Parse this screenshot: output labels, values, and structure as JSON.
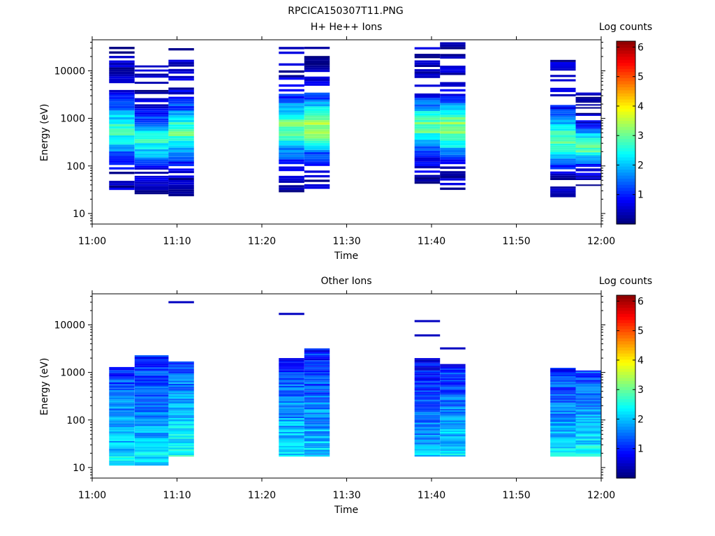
{
  "figure_title": "RPCICA150307T11.PNG",
  "chart_data": [
    {
      "type": "heatmap",
      "title": "H+ He++ Ions",
      "xlabel": "Time",
      "ylabel": "Energy (eV)",
      "x_ticks": [
        "11:00",
        "11:10",
        "11:20",
        "11:30",
        "11:40",
        "11:50",
        "12:00"
      ],
      "y_ticks": [
        "10",
        "100",
        "1000",
        "10000"
      ],
      "y_scale": "log",
      "ylim": [
        6,
        45000
      ],
      "colorbar": {
        "label": "Log counts",
        "ticks": [
          "1",
          "2",
          "3",
          "4",
          "5",
          "6"
        ],
        "range": [
          0,
          6.2
        ]
      },
      "columns": [
        {
          "start": "11:02",
          "end": "11:05",
          "emin": 28,
          "emax": 32000,
          "level": 2.6,
          "seed": 1
        },
        {
          "start": "11:05",
          "end": "11:09",
          "emin": 23,
          "emax": 13000,
          "level": 2.5,
          "seed": 2
        },
        {
          "start": "11:09",
          "end": "11:12",
          "emin": 23,
          "emax": 30000,
          "level": 2.8,
          "seed": 3
        },
        {
          "start": "11:22",
          "end": "11:25",
          "emin": 28,
          "emax": 40000,
          "level": 3.1,
          "seed": 4
        },
        {
          "start": "11:25",
          "end": "11:28",
          "emin": 33,
          "emax": 40000,
          "level": 3.4,
          "seed": 5
        },
        {
          "start": "11:38",
          "end": "11:41",
          "emin": 38,
          "emax": 35000,
          "level": 2.9,
          "seed": 6
        },
        {
          "start": "11:41",
          "end": "11:44",
          "emin": 28,
          "emax": 40000,
          "level": 3.2,
          "seed": 7
        },
        {
          "start": "11:54",
          "end": "11:57",
          "emin": 22,
          "emax": 17000,
          "level": 2.8,
          "seed": 8
        },
        {
          "start": "11:57",
          "end": "12:00",
          "emin": 38,
          "emax": 3500,
          "level": 3.0,
          "seed": 9
        }
      ]
    },
    {
      "type": "heatmap",
      "title": "Other Ions",
      "xlabel": "Time",
      "ylabel": "Energy (eV)",
      "x_ticks": [
        "11:00",
        "11:10",
        "11:20",
        "11:30",
        "11:40",
        "11:50",
        "12:00"
      ],
      "y_ticks": [
        "10",
        "100",
        "1000",
        "10000"
      ],
      "y_scale": "log",
      "ylim": [
        6,
        45000
      ],
      "colorbar": {
        "label": "Log counts",
        "ticks": [
          "1",
          "2",
          "3",
          "4",
          "5",
          "6"
        ],
        "range": [
          0,
          6.2
        ]
      },
      "columns": [
        {
          "start": "11:02",
          "end": "11:05",
          "emin": 11,
          "emax": 1300,
          "level": 2.4,
          "seed": 11
        },
        {
          "start": "11:05",
          "end": "11:09",
          "emin": 11,
          "emax": 2300,
          "level": 2.3,
          "seed": 12
        },
        {
          "start": "11:09",
          "end": "11:12",
          "emin": 17,
          "emax": 1700,
          "level": 2.6,
          "seed": 13
        },
        {
          "start": "11:22",
          "end": "11:25",
          "emin": 17,
          "emax": 2000,
          "level": 2.3,
          "seed": 14
        },
        {
          "start": "11:25",
          "end": "11:28",
          "emin": 17,
          "emax": 3200,
          "level": 2.2,
          "seed": 15
        },
        {
          "start": "11:38",
          "end": "11:41",
          "emin": 17,
          "emax": 2000,
          "level": 2.0,
          "seed": 16
        },
        {
          "start": "11:41",
          "end": "11:44",
          "emin": 17,
          "emax": 1500,
          "level": 2.3,
          "seed": 17
        },
        {
          "start": "11:54",
          "end": "11:57",
          "emin": 17,
          "emax": 1250,
          "level": 2.3,
          "seed": 18
        },
        {
          "start": "11:57",
          "end": "12:00",
          "emin": 17,
          "emax": 1100,
          "level": 2.5,
          "seed": 19
        }
      ],
      "isolated_lines": [
        {
          "start": "11:09",
          "end": "11:12",
          "energy": 30000,
          "level": 0.4
        },
        {
          "start": "11:22",
          "end": "11:25",
          "energy": 17000,
          "level": 0.4
        },
        {
          "start": "11:38",
          "end": "11:41",
          "energy": 12000,
          "level": 0.4
        },
        {
          "start": "11:38",
          "end": "11:41",
          "energy": 6000,
          "level": 0.4
        },
        {
          "start": "11:41",
          "end": "11:44",
          "energy": 3200,
          "level": 0.4
        }
      ]
    }
  ]
}
